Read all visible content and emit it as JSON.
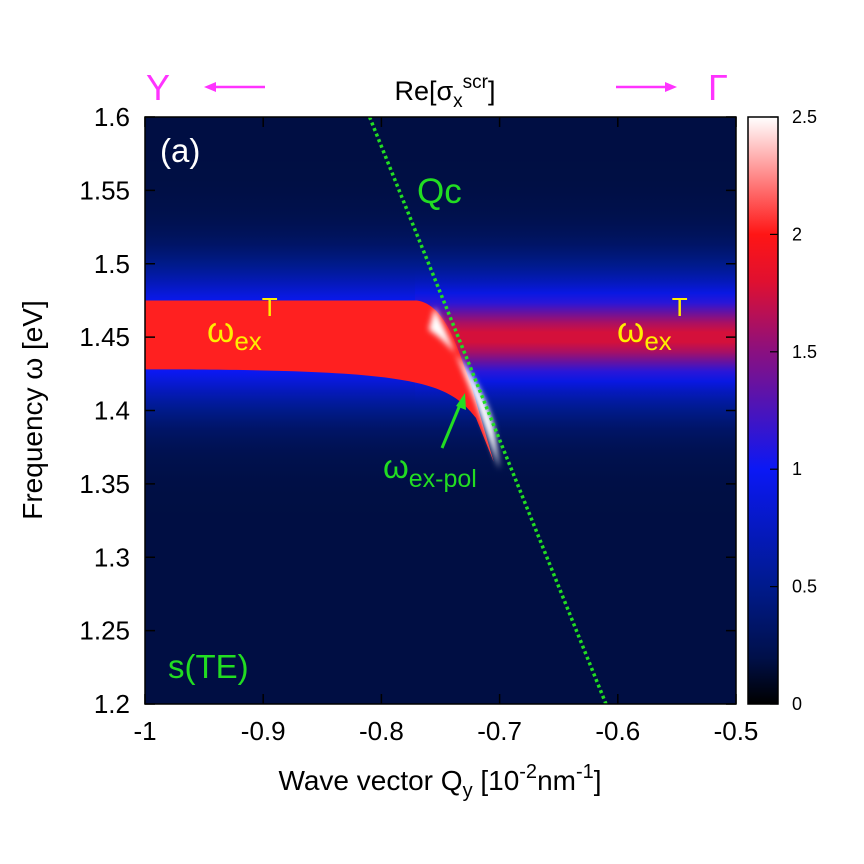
{
  "chart_data": {
    "type": "heatmap",
    "title": "Re[σ",
    "title_sub": "x",
    "title_sup": "scr",
    "title_end": "]",
    "xlabel": "Wave vector Q",
    "xlabel_sub": "y",
    "xlabel_unit_open": " [10",
    "xlabel_unit_sup1": "-2",
    "xlabel_unit_mid": "nm",
    "xlabel_unit_sup2": "-1",
    "xlabel_unit_close": "]",
    "ylabel": "Frequency ω [eV]",
    "xlim": [
      -1.0,
      -0.5
    ],
    "ylim": [
      1.2,
      1.6
    ],
    "colorbar_range": [
      0,
      2.5
    ],
    "x_ticks": [
      -1,
      -0.9,
      -0.8,
      -0.7,
      -0.6,
      -0.5
    ],
    "x_tick_labels": [
      "-1",
      "-0.9",
      "-0.8",
      "-0.7",
      "-0.6",
      "-0.5"
    ],
    "y_ticks": [
      1.2,
      1.25,
      1.3,
      1.35,
      1.4,
      1.45,
      1.5,
      1.55,
      1.6
    ],
    "y_tick_labels": [
      "1.2",
      "1.25",
      "1.3",
      "1.35",
      "1.4",
      "1.45",
      "1.5",
      "1.55",
      "1.6"
    ],
    "colorbar_ticks": [
      0,
      0.5,
      1,
      1.5,
      2,
      2.5
    ],
    "colorbar_tick_labels": [
      "0",
      "0.5",
      "1",
      "1.5",
      "2",
      "2.5"
    ],
    "colormap": [
      {
        "v": 0.0,
        "color": "#000000"
      },
      {
        "v": 0.2,
        "color": "#00104a"
      },
      {
        "v": 0.5,
        "color": "#001a8c"
      },
      {
        "v": 1.0,
        "color": "#0b18f5"
      },
      {
        "v": 1.5,
        "color": "#8a1080"
      },
      {
        "v": 1.8,
        "color": "#e01030"
      },
      {
        "v": 2.0,
        "color": "#ff1515"
      },
      {
        "v": 2.5,
        "color": "#ffffff"
      }
    ],
    "exciton_energy": 1.45,
    "light_cone": {
      "name": "Qc",
      "points": [
        [
          -0.81,
          1.6
        ],
        [
          -0.61,
          1.2
        ]
      ],
      "color": "#22dd22"
    },
    "direction_labels": {
      "left": "Y",
      "right": "Γ",
      "color": "#ff33ff"
    },
    "annotations": {
      "panel": "(a)",
      "qc": "Qc",
      "omega_left": "ω",
      "omega_left_sub": "ex",
      "omega_left_sup": "T",
      "omega_right": "ω",
      "omega_right_sub": "ex",
      "omega_right_sup": "T",
      "polariton": "ω",
      "polariton_sub": "ex-pol",
      "mode": "s(TE)",
      "exciton_color": "#ffee00",
      "green_color": "#22dd22"
    }
  }
}
